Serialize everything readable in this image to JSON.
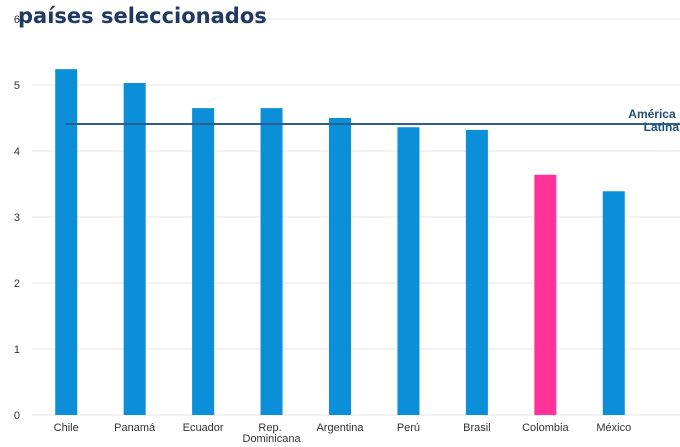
{
  "chart_data": {
    "type": "bar",
    "title": "países seleccionados",
    "categories": [
      "Chile",
      "Panamá",
      "Ecuador",
      "Rep. Dominicana",
      "Argentina",
      "Perú",
      "Brasil",
      "Colombia",
      "México"
    ],
    "values": [
      5.24,
      5.03,
      4.65,
      4.65,
      4.5,
      4.36,
      4.32,
      3.64,
      3.39
    ],
    "colors": [
      "#0a8fd8",
      "#0a8fd8",
      "#0a8fd8",
      "#0a8fd8",
      "#0a8fd8",
      "#0a8fd8",
      "#0a8fd8",
      "#ff3399",
      "#0a8fd8"
    ],
    "reference_line": {
      "label": "América Latina",
      "value": 4.41,
      "color": "#2e5e8e"
    },
    "ylim": [
      0,
      6
    ],
    "yticks": [
      0,
      1,
      2,
      3,
      4,
      5,
      6
    ],
    "grid": true
  }
}
